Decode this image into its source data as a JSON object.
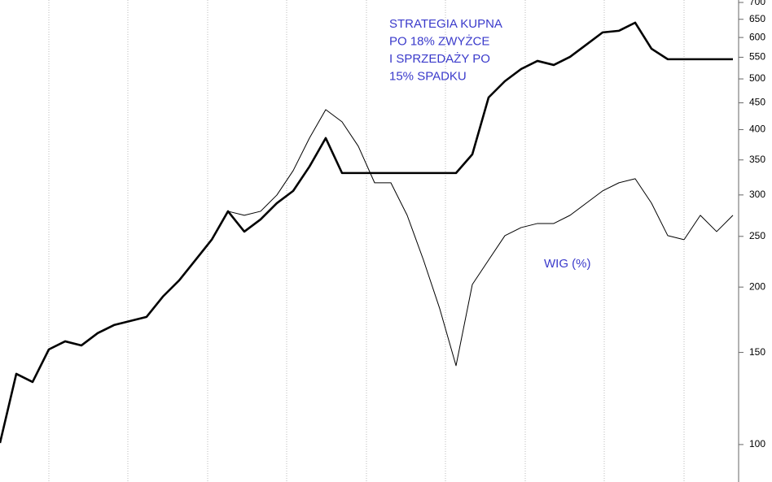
{
  "chart_data": {
    "type": "line",
    "annotations": [
      "STRATEGIA KUPNA",
      "PO 18% ZWYŻCE",
      "I SPRZEDAŻY PO",
      "15% SPADKU"
    ],
    "label": "WIG (%)",
    "text_color": "#3a3acb",
    "log_scale": true,
    "categories": [
      null,
      null,
      null,
      null,
      null,
      null,
      null,
      null,
      null,
      null,
      null,
      null,
      null,
      null,
      null,
      null,
      null,
      null,
      null,
      null,
      null,
      null,
      null,
      null,
      null,
      null,
      null,
      null,
      null,
      null,
      null,
      null,
      null,
      null,
      null,
      null,
      null,
      null,
      null,
      null,
      null,
      null,
      null,
      null,
      null,
      null
    ],
    "series": [
      {
        "color": "#000000",
        "width": 1,
        "values": [
          100.7,
          136.5,
          131.7,
          152,
          157.5,
          154.7,
          163.3,
          169.2,
          172.3,
          175.4,
          191.8,
          206,
          225.3,
          246.4,
          279.2,
          274.3,
          279.2,
          299.9,
          333.9,
          385.3,
          436.7,
          413.9,
          371.7,
          316.5,
          316.5,
          274.3,
          225.3,
          181.8,
          141.5,
          202.3,
          225.3,
          250.8,
          259.9,
          264.6,
          264.6,
          274.3,
          289.4,
          305.4,
          316.5,
          322.2,
          289.4,
          250.8,
          246.4,
          274.3,
          255.3,
          274.3
        ]
      },
      {
        "color": "#000000",
        "width": 2.6,
        "values": [
          100.7,
          136.5,
          131.7,
          152,
          157.5,
          154.7,
          163.3,
          169.2,
          172.3,
          175.4,
          191.8,
          206,
          225.3,
          246.4,
          279.2,
          255.3,
          269.4,
          289.4,
          305.4,
          339.9,
          385.3,
          330.4,
          330.4,
          330.4,
          330.4,
          330.4,
          330.4,
          330.4,
          330.4,
          358.7,
          460.8,
          495,
          522.3,
          541.2,
          531.6,
          551,
          581.4,
          613.5,
          617.9,
          640.4,
          571,
          545.2,
          545.2,
          545.2,
          545.2,
          545.2
        ]
      }
    ],
    "ylim": [
      84.8,
      707.6
    ],
    "yticks": [
      100,
      150,
      200,
      250,
      300,
      350,
      400,
      450,
      500,
      550,
      600,
      650,
      700
    ]
  }
}
